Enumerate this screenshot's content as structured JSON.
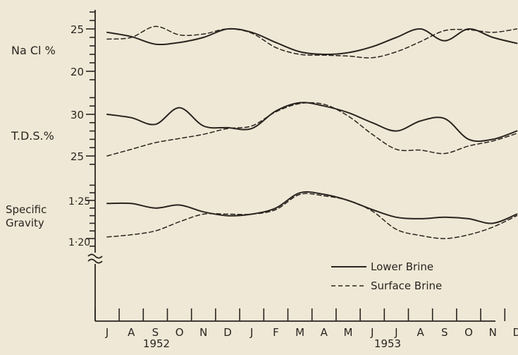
{
  "chart_data": {
    "type": "line",
    "x_months": [
      "J",
      "A",
      "S",
      "O",
      "N",
      "D",
      "J",
      "F",
      "M",
      "A",
      "M",
      "J",
      "J",
      "A",
      "S",
      "O",
      "N",
      "D"
    ],
    "x": [
      "1952-07",
      "1952-08",
      "1952-09",
      "1952-10",
      "1952-11",
      "1952-12",
      "1953-01",
      "1953-02",
      "1953-03",
      "1953-04",
      "1953-05",
      "1953-06",
      "1953-07",
      "1953-08",
      "1953-09",
      "1953-10",
      "1953-11",
      "1953-12"
    ],
    "year_labels": [
      "1952",
      "1953"
    ],
    "legend": {
      "position": "bottom-right",
      "entries": [
        "Lower Brine",
        "Surface Brine"
      ]
    },
    "panels": [
      {
        "key": "nacl",
        "ylabel": "Na Cl %",
        "ylim": [
          19,
          27
        ],
        "yticks": [
          20,
          25
        ],
        "ytick_labels": [
          "20",
          "25"
        ],
        "series": [
          {
            "name": "Lower Brine",
            "style": "solid",
            "values": [
              24.6,
              24.1,
              23.2,
              23.4,
              24.0,
              25.0,
              24.6,
              23.4,
              22.3,
              22.0,
              22.2,
              22.9,
              24.0,
              25.0,
              23.6,
              25.0,
              24.0,
              23.3
            ]
          },
          {
            "name": "Surface Brine",
            "style": "dashed",
            "values": [
              23.8,
              24.0,
              25.3,
              24.3,
              24.4,
              25.0,
              24.5,
              22.8,
              22.0,
              21.9,
              21.8,
              21.6,
              22.3,
              23.5,
              24.8,
              24.9,
              24.6,
              25.0
            ]
          }
        ]
      },
      {
        "key": "tds",
        "ylabel": "T.D.S.%",
        "ylim": [
          23,
          33
        ],
        "yticks": [
          25,
          30
        ],
        "ytick_labels": [
          "25",
          "30"
        ],
        "series": [
          {
            "name": "Lower Brine",
            "style": "solid",
            "values": [
              30.0,
              29.6,
              28.8,
              30.8,
              28.6,
              28.4,
              28.3,
              30.4,
              31.4,
              31.0,
              30.2,
              29.0,
              28.0,
              29.2,
              29.5,
              27.0,
              27.0,
              28.0
            ]
          },
          {
            "name": "Surface Brine",
            "style": "dashed",
            "values": [
              25.0,
              25.8,
              26.6,
              27.1,
              27.6,
              28.3,
              28.6,
              30.3,
              31.3,
              31.2,
              29.8,
              27.6,
              25.8,
              25.7,
              25.3,
              26.2,
              26.8,
              27.7
            ]
          }
        ]
      },
      {
        "key": "sg",
        "ylabel": "Specific Gravity",
        "ylim": [
          1.19,
          1.27
        ],
        "yticks": [
          1.2,
          1.25
        ],
        "ytick_labels": [
          "1·20",
          "1·25"
        ],
        "series": [
          {
            "name": "Lower Brine",
            "style": "solid",
            "values": [
              1.246,
              1.246,
              1.24,
              1.244,
              1.235,
              1.23,
              1.232,
              1.24,
              1.26,
              1.258,
              1.25,
              1.238,
              1.228,
              1.226,
              1.228,
              1.226,
              1.22,
              1.232
            ]
          },
          {
            "name": "Surface Brine",
            "style": "dashed",
            "values": [
              1.202,
              1.205,
              1.21,
              1.222,
              1.232,
              1.232,
              1.232,
              1.238,
              1.258,
              1.256,
              1.25,
              1.236,
              1.212,
              1.204,
              1.2,
              1.205,
              1.215,
              1.23
            ]
          }
        ]
      }
    ]
  }
}
